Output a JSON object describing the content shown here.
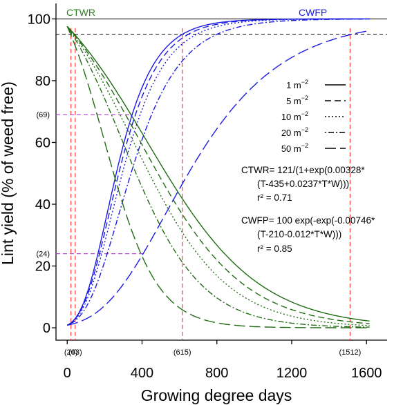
{
  "chart_data": {
    "type": "line",
    "xlabel": "Growing degree days",
    "ylabel": "Lint yield (% of weed free)",
    "xlim": [
      -60,
      1710
    ],
    "ylim": [
      -4,
      105
    ],
    "xticks": [
      "0",
      "400",
      "800",
      "1200",
      "1600"
    ],
    "xtick_values": [
      0,
      400,
      800,
      1200,
      1600
    ],
    "yticks": [
      "0",
      "20",
      "40",
      "60",
      "80",
      "100"
    ],
    "ytick_values": [
      0,
      20,
      40,
      60,
      80,
      100
    ],
    "grid": false,
    "curve_labels": {
      "ctwr": {
        "text": "CTWR",
        "color": "#2e7d1f"
      },
      "cwfp": {
        "text": "CWFP",
        "color": "#1a1ae6"
      }
    },
    "colors": {
      "ctwr": "#1f6b12",
      "cwfp": "#1a1ae6",
      "vertical_markers": "#ff2a2a",
      "horizontal_markers": "#b040d0"
    },
    "x_range": [
      0,
      1620
    ],
    "reference_lines": [
      {
        "y": 100,
        "style": "solid"
      },
      {
        "y": 95,
        "style": "dashed"
      }
    ],
    "vertical_markers": [
      {
        "x": 20,
        "label": "(20)"
      },
      {
        "x": 43,
        "label": "(43)"
      },
      {
        "x": 615,
        "label": "(615)"
      },
      {
        "x": 1512,
        "label": "(1512)"
      }
    ],
    "horizontal_markers": [
      {
        "y": 69,
        "label": "(69)",
        "x_to": 350
      },
      {
        "y": 24,
        "label": "(24)",
        "x_to": 410
      }
    ],
    "legend": {
      "position": "right",
      "entries": [
        {
          "label_main": "1 m",
          "sup": "−2",
          "dash": "solid",
          "density": 1
        },
        {
          "label_main": "5 m",
          "sup": "−2",
          "dash": "dashed",
          "density": 5
        },
        {
          "label_main": "10 m",
          "sup": "−2",
          "dash": "dotted",
          "density": 10
        },
        {
          "label_main": "20 m",
          "sup": "−2",
          "dash": "dotdash",
          "density": 20
        },
        {
          "label_main": "50 m",
          "sup": "−2",
          "dash": "longdash",
          "density": 50
        }
      ]
    },
    "equations": {
      "ctwr_line1": "CTWR= 121/(1+exp(0.00328*",
      "ctwr_line2": "(T-435+0.0237*T*W)))",
      "ctwr_r2": "r² = 0.71",
      "cwfp_line1": "CWFP= 100 exp(-exp(-0.00746*",
      "cwfp_line2": "(T-210-0.012*T*W)))",
      "cwfp_r2": "r² = 0.85"
    },
    "models": {
      "ctwr": {
        "a": 121,
        "b": 0.00328,
        "c": 435,
        "d": 0.0237
      },
      "cwfp": {
        "a": 100,
        "b": 0.00746,
        "c": 210,
        "d": 0.012
      }
    }
  }
}
